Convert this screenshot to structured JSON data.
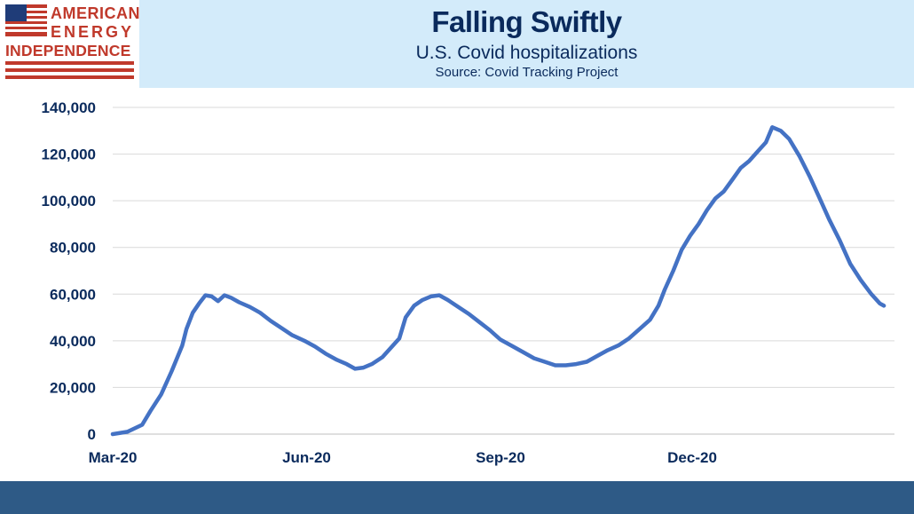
{
  "logo": {
    "line1": "AMERICAN",
    "line2": "ENERGY",
    "line3": "INDEPENDENCE",
    "icon": "us-flag-icon",
    "color": "#c0392b"
  },
  "header": {
    "title": "Falling Swiftly",
    "subtitle": "U.S. Covid hospitalizations",
    "source": "Source: Covid Tracking Project",
    "background": "#d3ebfa",
    "text_color": "#0a2a5c"
  },
  "footer": {
    "color": "#2e5a86"
  },
  "chart_data": {
    "type": "line",
    "title": "",
    "xlabel": "",
    "ylabel": "",
    "ylim": [
      0,
      140000
    ],
    "yticks": [
      0,
      20000,
      40000,
      60000,
      80000,
      100000,
      120000,
      140000
    ],
    "ytick_labels": [
      "0",
      "20,000",
      "40,000",
      "60,000",
      "80,000",
      "100,000",
      "120,000",
      "140,000"
    ],
    "xlim": [
      "2020-03-01",
      "2021-03-07"
    ],
    "xticks": [
      "2020-03-01",
      "2020-06-01",
      "2020-09-01",
      "2020-12-01"
    ],
    "xtick_labels": [
      "Mar-20",
      "Jun-20",
      "Sep-20",
      "Dec-20"
    ],
    "grid": "horizontal",
    "line_color": "#4472c4",
    "series": [
      {
        "name": "",
        "points": [
          [
            "2020-03-01",
            0
          ],
          [
            "2020-03-08",
            1000
          ],
          [
            "2020-03-15",
            4000
          ],
          [
            "2020-03-19",
            10000
          ],
          [
            "2020-03-24",
            17000
          ],
          [
            "2020-03-29",
            27000
          ],
          [
            "2020-04-03",
            38000
          ],
          [
            "2020-04-05",
            45000
          ],
          [
            "2020-04-08",
            52000
          ],
          [
            "2020-04-11",
            56000
          ],
          [
            "2020-04-14",
            59500
          ],
          [
            "2020-04-17",
            59000
          ],
          [
            "2020-04-20",
            57000
          ],
          [
            "2020-04-23",
            59500
          ],
          [
            "2020-04-26",
            58500
          ],
          [
            "2020-04-30",
            56500
          ],
          [
            "2020-05-05",
            54500
          ],
          [
            "2020-05-10",
            52000
          ],
          [
            "2020-05-15",
            48500
          ],
          [
            "2020-05-20",
            45500
          ],
          [
            "2020-05-25",
            42500
          ],
          [
            "2020-05-31",
            40000
          ],
          [
            "2020-06-05",
            37500
          ],
          [
            "2020-06-10",
            34500
          ],
          [
            "2020-06-15",
            32000
          ],
          [
            "2020-06-20",
            30000
          ],
          [
            "2020-06-24",
            28000
          ],
          [
            "2020-06-28",
            28500
          ],
          [
            "2020-07-02",
            30000
          ],
          [
            "2020-07-07",
            33000
          ],
          [
            "2020-07-11",
            37000
          ],
          [
            "2020-07-15",
            41000
          ],
          [
            "2020-07-18",
            50000
          ],
          [
            "2020-07-22",
            55000
          ],
          [
            "2020-07-26",
            57500
          ],
          [
            "2020-07-30",
            59000
          ],
          [
            "2020-08-03",
            59500
          ],
          [
            "2020-08-07",
            57500
          ],
          [
            "2020-08-12",
            54500
          ],
          [
            "2020-08-17",
            51500
          ],
          [
            "2020-08-22",
            48000
          ],
          [
            "2020-08-27",
            44500
          ],
          [
            "2020-09-01",
            40500
          ],
          [
            "2020-09-07",
            37500
          ],
          [
            "2020-09-12",
            35000
          ],
          [
            "2020-09-17",
            32500
          ],
          [
            "2020-09-22",
            31000
          ],
          [
            "2020-09-27",
            29500
          ],
          [
            "2020-10-02",
            29500
          ],
          [
            "2020-10-07",
            30000
          ],
          [
            "2020-10-12",
            31000
          ],
          [
            "2020-10-17",
            33500
          ],
          [
            "2020-10-22",
            36000
          ],
          [
            "2020-10-27",
            38000
          ],
          [
            "2020-11-01",
            41000
          ],
          [
            "2020-11-06",
            45000
          ],
          [
            "2020-11-11",
            49000
          ],
          [
            "2020-11-15",
            55000
          ],
          [
            "2020-11-18",
            62000
          ],
          [
            "2020-11-22",
            70000
          ],
          [
            "2020-11-26",
            79000
          ],
          [
            "2020-11-30",
            85000
          ],
          [
            "2020-12-04",
            90000
          ],
          [
            "2020-12-08",
            96000
          ],
          [
            "2020-12-12",
            101000
          ],
          [
            "2020-12-16",
            104000
          ],
          [
            "2020-12-20",
            109000
          ],
          [
            "2020-12-24",
            114000
          ],
          [
            "2020-12-28",
            117000
          ],
          [
            "2021-01-01",
            121000
          ],
          [
            "2021-01-05",
            125000
          ],
          [
            "2021-01-08",
            131500
          ],
          [
            "2021-01-12",
            130000
          ],
          [
            "2021-01-16",
            126500
          ],
          [
            "2021-01-21",
            119000
          ],
          [
            "2021-01-26",
            110000
          ],
          [
            "2021-01-31",
            100000
          ],
          [
            "2021-02-04",
            92000
          ],
          [
            "2021-02-09",
            83000
          ],
          [
            "2021-02-14",
            73000
          ],
          [
            "2021-02-19",
            66000
          ],
          [
            "2021-02-24",
            60000
          ],
          [
            "2021-02-28",
            56000
          ],
          [
            "2021-03-02",
            55000
          ]
        ]
      }
    ]
  }
}
